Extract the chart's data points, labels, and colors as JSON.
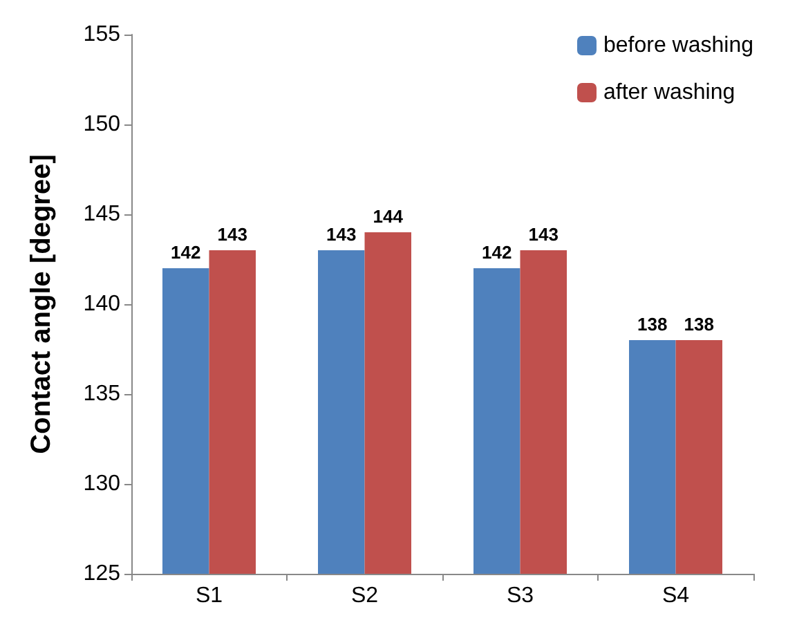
{
  "chart_data": {
    "type": "bar",
    "ylabel": "Contact angle [degree]",
    "categories": [
      "S1",
      "S2",
      "S3",
      "S4"
    ],
    "series": [
      {
        "name": "before washing",
        "color": "#4f81bd",
        "values": [
          142,
          143,
          142,
          138
        ]
      },
      {
        "name": "after washing",
        "color": "#c0504d",
        "values": [
          143,
          144,
          143,
          138
        ]
      }
    ],
    "ylim": [
      125,
      155
    ],
    "yticks": [
      125,
      130,
      135,
      140,
      145,
      150,
      155
    ],
    "grid": false,
    "legend": "top right",
    "data_labels": true
  }
}
